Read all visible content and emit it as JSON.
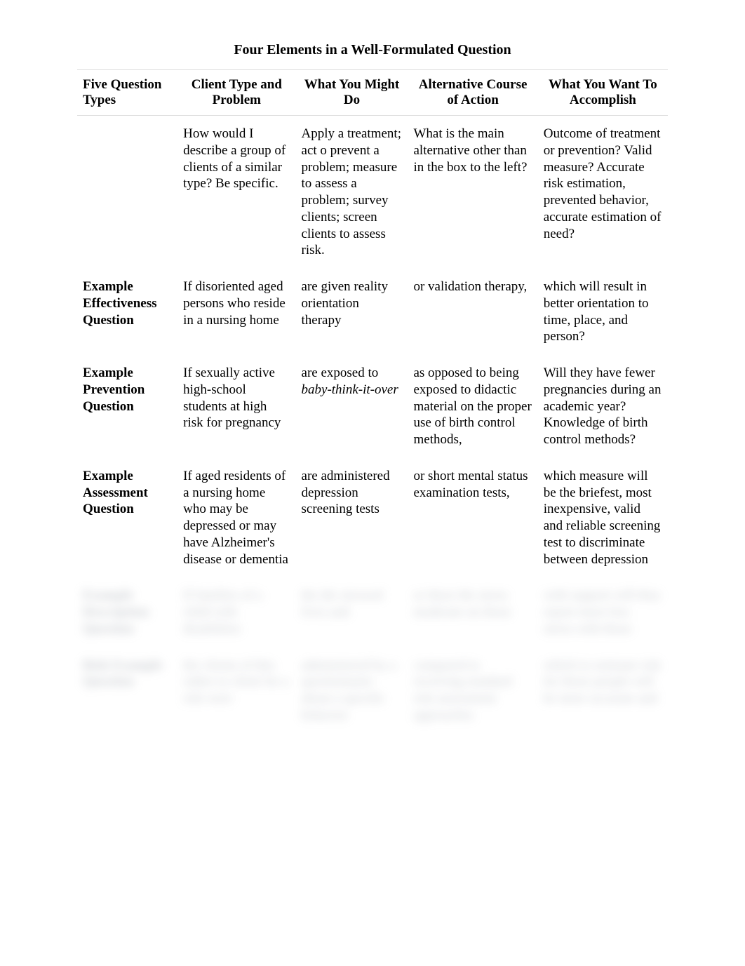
{
  "title": "Four Elements in a Well-Formulated Question",
  "colors": {
    "background": "#ffffff",
    "text": "#000000",
    "header_border": "#dcdcdc",
    "blurred_text": "#9aa0a8"
  },
  "typography": {
    "font_family": "Times New Roman",
    "title_fontsize_pt": 15,
    "title_weight": "bold",
    "header_fontsize_pt": 14,
    "header_weight": "bold",
    "body_fontsize_pt": 14,
    "row_label_weight": "bold",
    "line_height": 1.25
  },
  "table": {
    "type": "table",
    "column_widths_pct": [
      17,
      20,
      19,
      22,
      22
    ],
    "header_alignment": [
      "left",
      "center",
      "center",
      "center",
      "center"
    ],
    "body_alignment": [
      "left",
      "left",
      "left",
      "left",
      "left"
    ],
    "columns": [
      "Five Question Types",
      "Client Type and Problem",
      "What You Might Do",
      "Alternative Course of Action",
      "What You Want To Accomplish"
    ],
    "rows": [
      {
        "label": "",
        "cells": [
          "How would I describe a group of clients of a similar type? Be specific.",
          "Apply a treatment; act o prevent a problem; measure to assess a problem; survey clients; screen clients to assess risk.",
          "What is the main alternative other than in the box to the left?",
          "Outcome of treatment or prevention? Valid measure? Accurate risk estimation, prevented behavior, accurate estimation of need?"
        ]
      },
      {
        "label": "Example Effectiveness Question",
        "cells": [
          "If disoriented aged persons who reside in a nursing home",
          "are given reality orientation therapy",
          "or validation therapy,",
          "which will result in better orientation to time, place, and person?"
        ]
      },
      {
        "label": "Example Prevention Question",
        "cells": [
          "If sexually active high-school students at high risk for pregnancy",
          "are exposed to <em>baby-think-it-over</em>",
          "as opposed to being exposed to didactic material on the proper use of birth control methods,",
          "Will they have fewer pregnancies during an academic year? Knowledge of birth control methods?"
        ]
      },
      {
        "label": "Example Assessment Question",
        "cells": [
          "If aged residents of a nursing home who may be depressed or may have Alzheimer's disease or dementia",
          "are administered depression screening tests",
          "or short mental status examination tests,",
          "which measure will be the briefest, most inexpensive, valid and reliable screening test to discriminate between depression"
        ]
      }
    ],
    "blurred_rows": [
      {
        "label": "Example Description Question",
        "cells": [
          "If families of a child with disabilities",
          "the die stressed lives and",
          "or these the stress moderate on those",
          "with support will they report more less stress with those"
        ]
      },
      {
        "label": "Risk Example Question",
        "cells": [
          "the clients of this rather to client for a risk were",
          "administered by a questionnaire about a specific behavior",
          "compared to receiving standard risk assessment approaches",
          "which to estimate risk for those people will be more accurate and"
        ]
      }
    ]
  }
}
